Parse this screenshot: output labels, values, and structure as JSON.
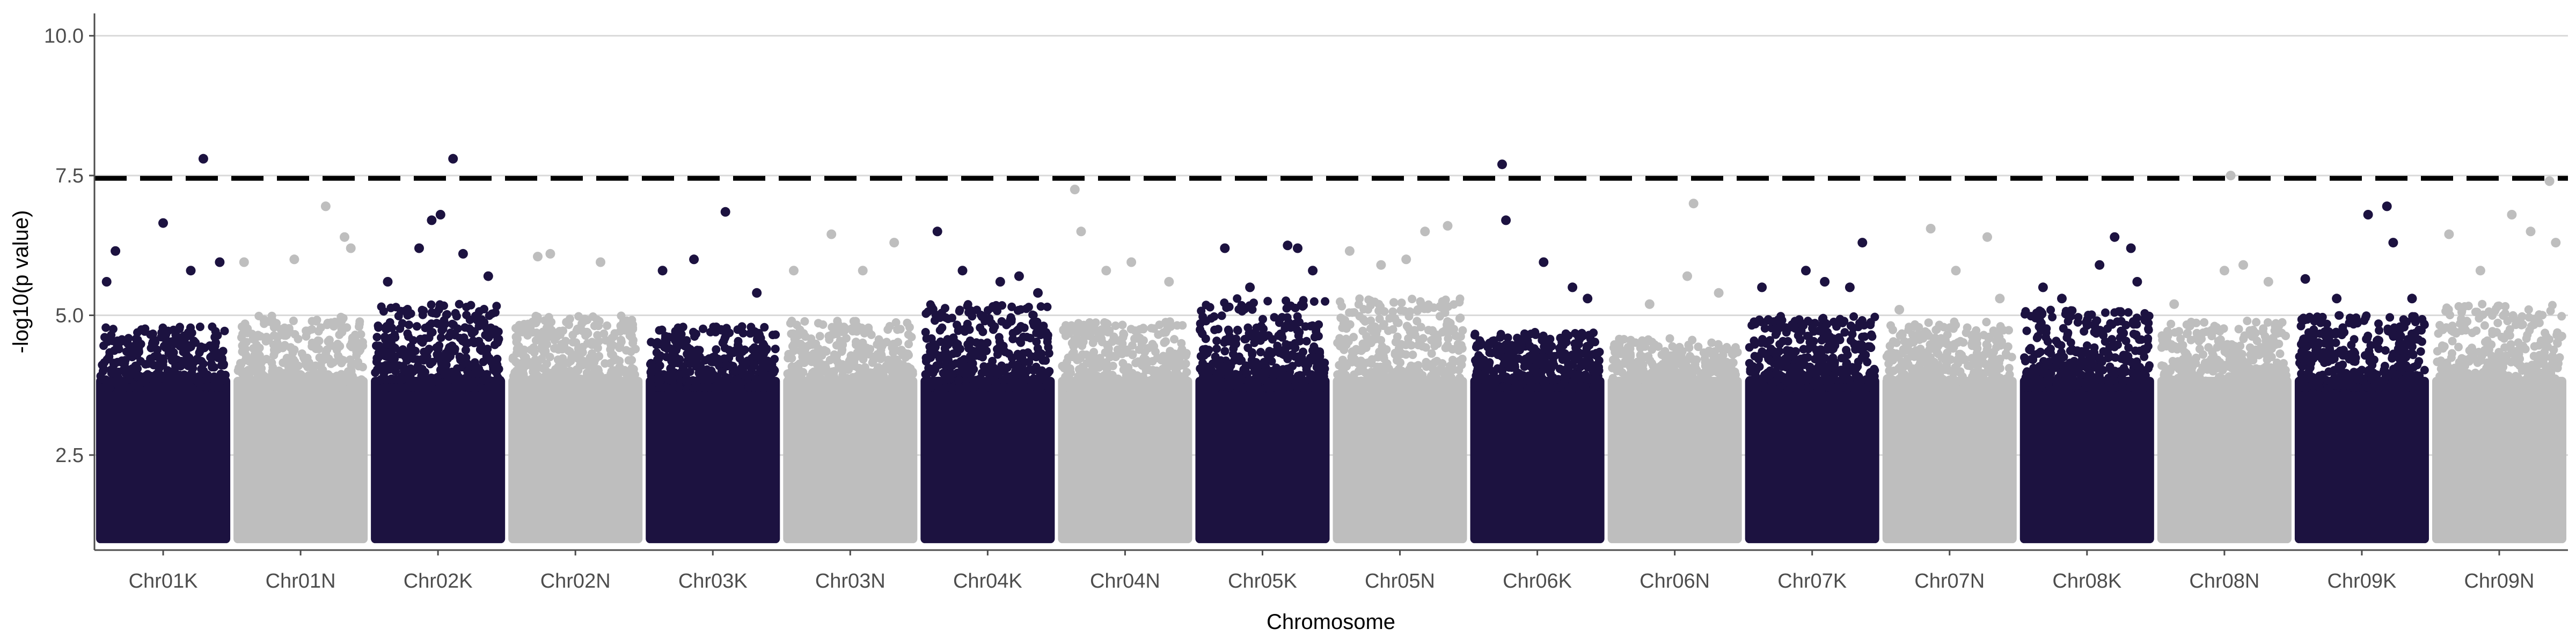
{
  "chart_data": {
    "type": "scatter",
    "subtype": "manhattan",
    "xlabel": "Chromosome",
    "ylabel": "-log10(p value)",
    "ylim": [
      0.8,
      10.4
    ],
    "yticks": [
      2.5,
      5.0,
      7.5,
      10.0
    ],
    "ytick_labels": [
      "2.5",
      "5.0",
      "7.5",
      "10.0"
    ],
    "grid": "horizontal major lines",
    "significance_threshold": 7.45,
    "colors": {
      "odd": "#1c1240",
      "even": "#bebebe",
      "threshold": "#000000",
      "grid": "#d9d9d9",
      "axis": "#4d4d4d"
    },
    "categories": [
      "Chr01K",
      "Chr01N",
      "Chr02K",
      "Chr02N",
      "Chr03K",
      "Chr03N",
      "Chr04K",
      "Chr04N",
      "Chr05K",
      "Chr05N",
      "Chr06K",
      "Chr06N",
      "Chr07K",
      "Chr07N",
      "Chr08K",
      "Chr08N",
      "Chr09K",
      "Chr09N"
    ],
    "series": [
      {
        "chromosome": "Chr01K",
        "min": 1.0,
        "bulk_top": 4.8,
        "top_points": [
          [
            0.05,
            5.6
          ],
          [
            0.12,
            6.15
          ],
          [
            0.5,
            6.65
          ],
          [
            0.72,
            5.8
          ],
          [
            0.82,
            7.8
          ],
          [
            0.95,
            5.95
          ]
        ]
      },
      {
        "chromosome": "Chr01N",
        "min": 1.0,
        "bulk_top": 5.0,
        "top_points": [
          [
            0.05,
            5.95
          ],
          [
            0.45,
            6.0
          ],
          [
            0.7,
            6.95
          ],
          [
            0.85,
            6.4
          ],
          [
            0.9,
            6.2
          ]
        ]
      },
      {
        "chromosome": "Chr02K",
        "min": 1.0,
        "bulk_top": 5.2,
        "top_points": [
          [
            0.1,
            5.6
          ],
          [
            0.35,
            6.2
          ],
          [
            0.45,
            6.7
          ],
          [
            0.52,
            6.8
          ],
          [
            0.62,
            7.8
          ],
          [
            0.7,
            6.1
          ],
          [
            0.9,
            5.7
          ]
        ]
      },
      {
        "chromosome": "Chr02N",
        "min": 1.0,
        "bulk_top": 5.0,
        "top_points": [
          [
            0.2,
            6.05
          ],
          [
            0.3,
            6.1
          ],
          [
            0.7,
            5.95
          ]
        ]
      },
      {
        "chromosome": "Chr03K",
        "min": 1.0,
        "bulk_top": 4.8,
        "top_points": [
          [
            0.1,
            5.8
          ],
          [
            0.35,
            6.0
          ],
          [
            0.6,
            6.85
          ],
          [
            0.85,
            5.4
          ]
        ]
      },
      {
        "chromosome": "Chr03N",
        "min": 1.0,
        "bulk_top": 4.9,
        "top_points": [
          [
            0.05,
            5.8
          ],
          [
            0.35,
            6.45
          ],
          [
            0.6,
            5.8
          ],
          [
            0.85,
            6.3
          ]
        ]
      },
      {
        "chromosome": "Chr04K",
        "min": 1.0,
        "bulk_top": 5.2,
        "top_points": [
          [
            0.1,
            6.5
          ],
          [
            0.3,
            5.8
          ],
          [
            0.6,
            5.6
          ],
          [
            0.75,
            5.7
          ],
          [
            0.9,
            5.4
          ]
        ]
      },
      {
        "chromosome": "Chr04N",
        "min": 1.0,
        "bulk_top": 4.9,
        "top_points": [
          [
            0.1,
            7.25
          ],
          [
            0.15,
            6.5
          ],
          [
            0.35,
            5.8
          ],
          [
            0.55,
            5.95
          ],
          [
            0.85,
            5.6
          ]
        ]
      },
      {
        "chromosome": "Chr05K",
        "min": 1.0,
        "bulk_top": 5.3,
        "top_points": [
          [
            0.2,
            6.2
          ],
          [
            0.4,
            5.5
          ],
          [
            0.7,
            6.25
          ],
          [
            0.78,
            6.2
          ],
          [
            0.9,
            5.8
          ]
        ]
      },
      {
        "chromosome": "Chr05N",
        "min": 1.0,
        "bulk_top": 5.3,
        "top_points": [
          [
            0.1,
            6.15
          ],
          [
            0.35,
            5.9
          ],
          [
            0.55,
            6.0
          ],
          [
            0.7,
            6.5
          ],
          [
            0.88,
            6.6
          ]
        ]
      },
      {
        "chromosome": "Chr06K",
        "min": 1.0,
        "bulk_top": 4.7,
        "top_points": [
          [
            0.22,
            7.7
          ],
          [
            0.25,
            6.7
          ],
          [
            0.55,
            5.95
          ],
          [
            0.78,
            5.5
          ],
          [
            0.9,
            5.3
          ]
        ]
      },
      {
        "chromosome": "Chr06N",
        "min": 1.0,
        "bulk_top": 4.6,
        "top_points": [
          [
            0.3,
            5.2
          ],
          [
            0.6,
            5.7
          ],
          [
            0.65,
            7.0
          ],
          [
            0.85,
            5.4
          ]
        ]
      },
      {
        "chromosome": "Chr07K",
        "min": 1.0,
        "bulk_top": 5.0,
        "top_points": [
          [
            0.1,
            5.5
          ],
          [
            0.45,
            5.8
          ],
          [
            0.6,
            5.6
          ],
          [
            0.8,
            5.5
          ],
          [
            0.9,
            6.3
          ]
        ]
      },
      {
        "chromosome": "Chr07N",
        "min": 1.0,
        "bulk_top": 4.9,
        "top_points": [
          [
            0.1,
            5.1
          ],
          [
            0.35,
            6.55
          ],
          [
            0.55,
            5.8
          ],
          [
            0.8,
            6.4
          ],
          [
            0.9,
            5.3
          ]
        ]
      },
      {
        "chromosome": "Chr08K",
        "min": 1.0,
        "bulk_top": 5.1,
        "top_points": [
          [
            0.15,
            5.5
          ],
          [
            0.3,
            5.3
          ],
          [
            0.6,
            5.9
          ],
          [
            0.72,
            6.4
          ],
          [
            0.85,
            6.2
          ],
          [
            0.9,
            5.6
          ]
        ]
      },
      {
        "chromosome": "Chr08N",
        "min": 1.0,
        "bulk_top": 4.9,
        "top_points": [
          [
            0.1,
            5.2
          ],
          [
            0.5,
            5.8
          ],
          [
            0.55,
            7.5
          ],
          [
            0.65,
            5.9
          ],
          [
            0.85,
            5.6
          ]
        ]
      },
      {
        "chromosome": "Chr09K",
        "min": 1.0,
        "bulk_top": 5.0,
        "top_points": [
          [
            0.05,
            5.65
          ],
          [
            0.3,
            5.3
          ],
          [
            0.55,
            6.8
          ],
          [
            0.7,
            6.95
          ],
          [
            0.75,
            6.3
          ],
          [
            0.9,
            5.3
          ]
        ]
      },
      {
        "chromosome": "Chr09N",
        "min": 1.0,
        "bulk_top": 5.2,
        "top_points": [
          [
            0.1,
            6.45
          ],
          [
            0.35,
            5.8
          ],
          [
            0.6,
            6.8
          ],
          [
            0.75,
            6.5
          ],
          [
            0.9,
            7.4
          ],
          [
            0.95,
            6.3
          ]
        ]
      }
    ]
  }
}
